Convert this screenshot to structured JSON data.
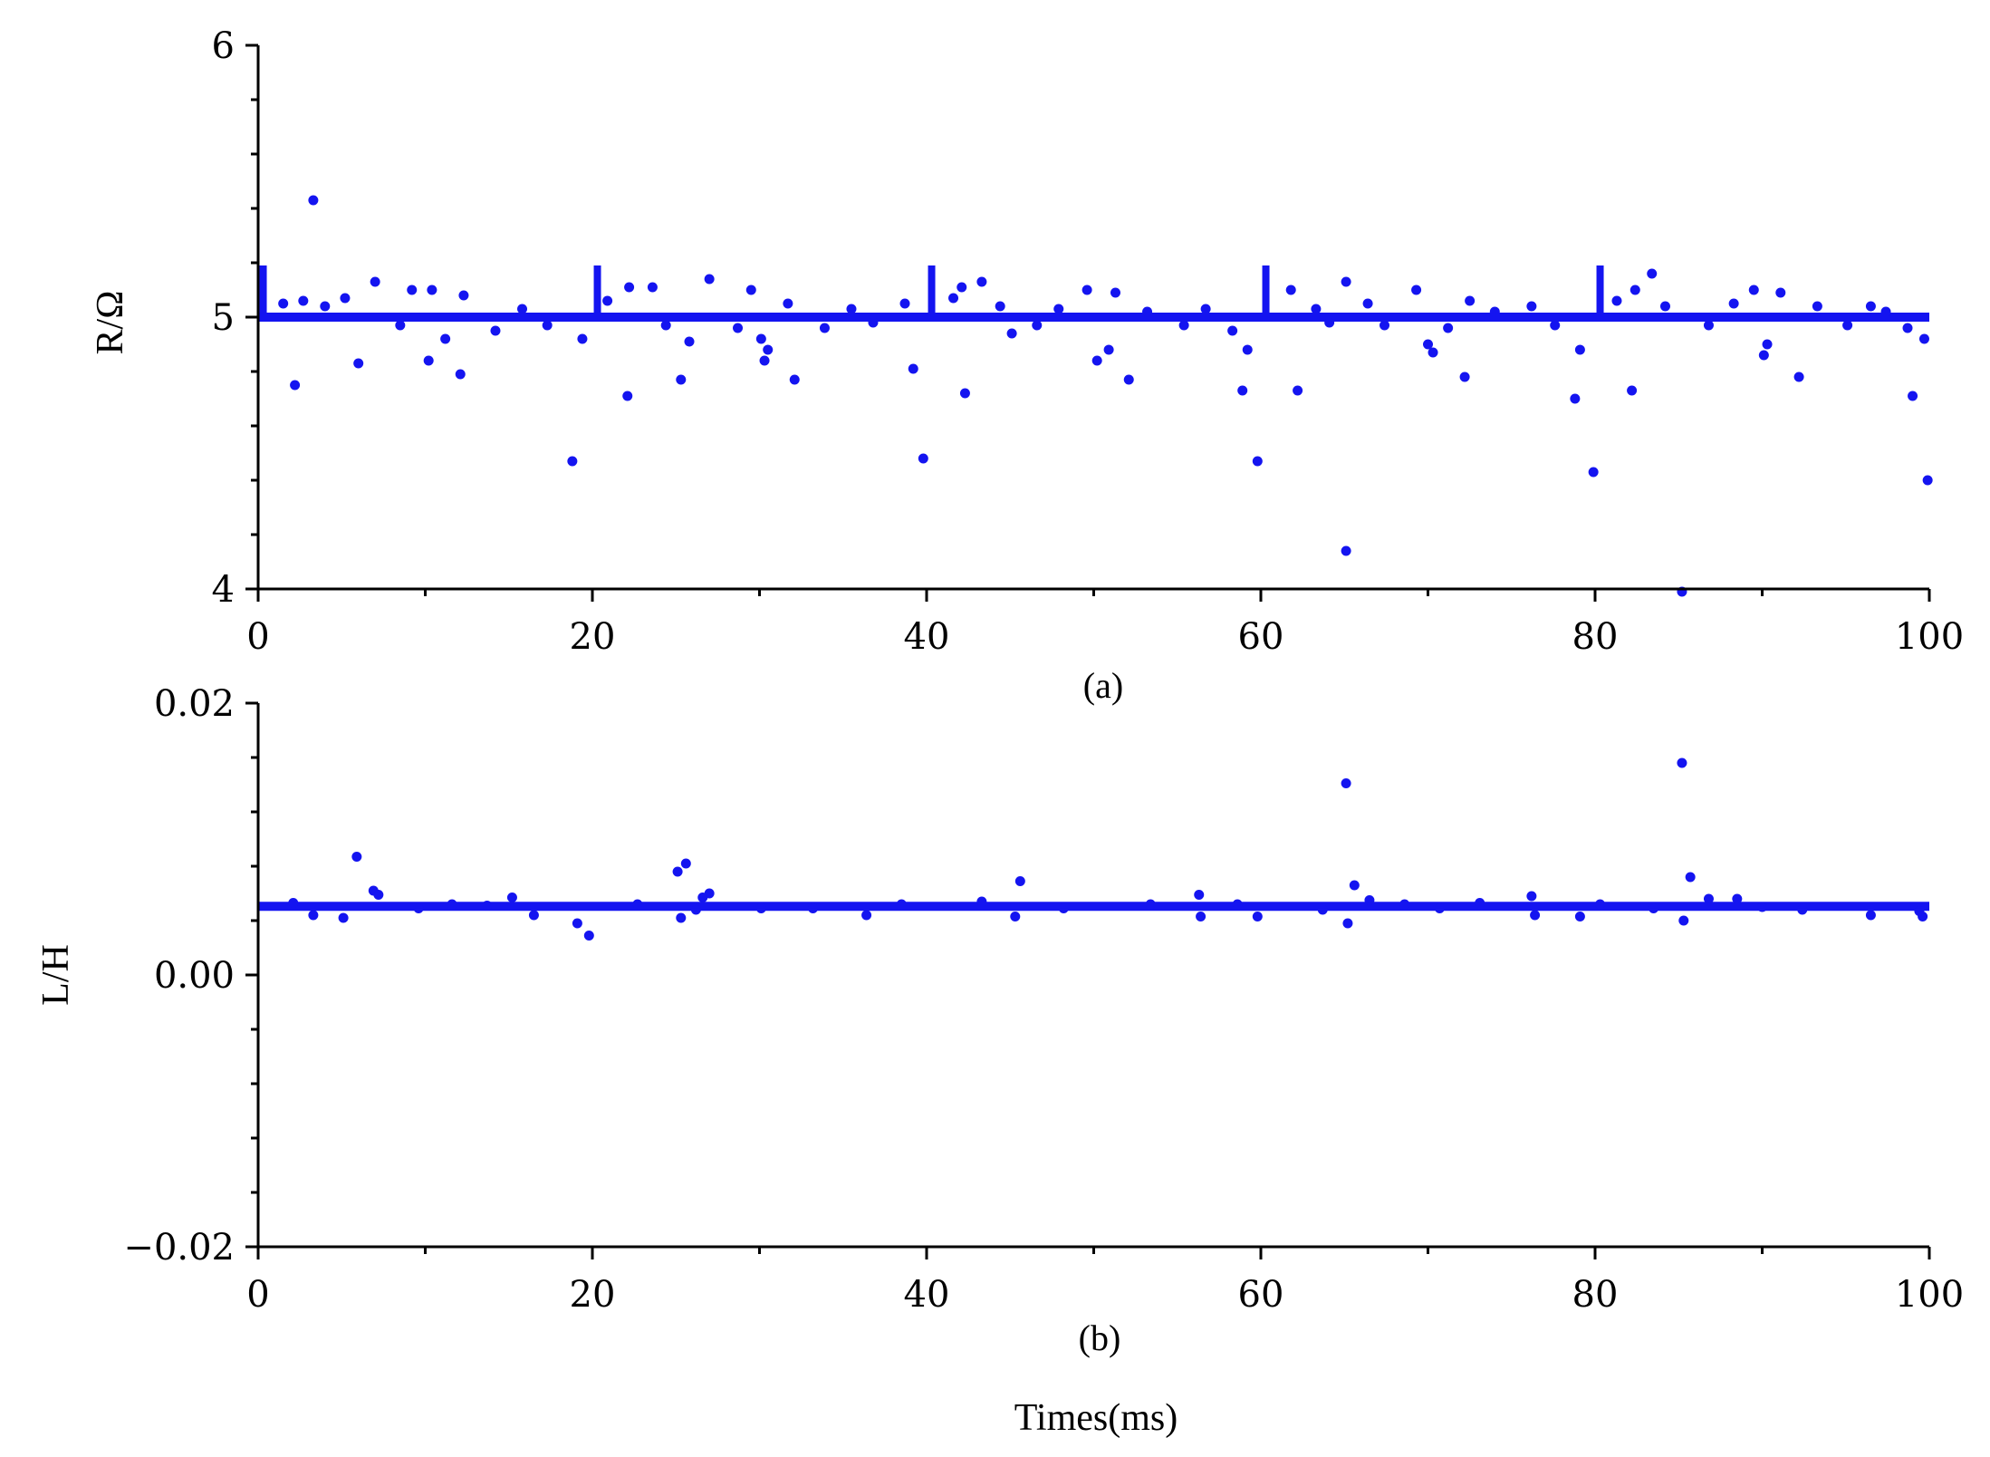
{
  "colors": {
    "points": "#1414f0",
    "axes": "#000000"
  },
  "xlabel": "Times(ms)",
  "chart_data": [
    {
      "type": "scatter",
      "panel_label": "(a)",
      "ylabel": "R/Ω",
      "xlim": [
        0,
        100
      ],
      "ylim": [
        4,
        6
      ],
      "x_ticks": [
        "0",
        "20",
        "40",
        "60",
        "80",
        "100"
      ],
      "y_ticks": [
        "4",
        "5",
        "6"
      ],
      "baseline": 5.0,
      "series": [
        {
          "points": [
            [
              3.3,
              5.43
            ],
            [
              2.2,
              4.75
            ],
            [
              6.0,
              4.83
            ],
            [
              10.2,
              4.84
            ],
            [
              12.1,
              4.79
            ],
            [
              7.0,
              5.13
            ],
            [
              18.8,
              4.47
            ],
            [
              22.1,
              4.71
            ],
            [
              25.3,
              4.77
            ],
            [
              27.0,
              5.14
            ],
            [
              30.3,
              4.84
            ],
            [
              32.1,
              4.77
            ],
            [
              39.8,
              4.48
            ],
            [
              39.2,
              4.81
            ],
            [
              42.3,
              4.72
            ],
            [
              43.3,
              5.13
            ],
            [
              45.1,
              4.94
            ],
            [
              50.2,
              4.84
            ],
            [
              52.1,
              4.77
            ],
            [
              59.8,
              4.47
            ],
            [
              58.9,
              4.73
            ],
            [
              62.2,
              4.73
            ],
            [
              65.1,
              4.14
            ],
            [
              65.1,
              5.13
            ],
            [
              70.3,
              4.87
            ],
            [
              72.2,
              4.78
            ],
            [
              79.9,
              4.43
            ],
            [
              78.8,
              4.7
            ],
            [
              82.2,
              4.73
            ],
            [
              83.4,
              5.16
            ],
            [
              85.2,
              3.99
            ],
            [
              90.1,
              4.86
            ],
            [
              92.2,
              4.78
            ],
            [
              99.0,
              4.71
            ],
            [
              99.9,
              4.4
            ],
            [
              99.7,
              4.92
            ],
            [
              1.5,
              5.05
            ],
            [
              2.7,
              5.06
            ],
            [
              4.0,
              5.04
            ],
            [
              5.2,
              5.07
            ],
            [
              8.5,
              4.97
            ],
            [
              9.2,
              5.1
            ],
            [
              10.4,
              5.1
            ],
            [
              11.2,
              4.92
            ],
            [
              12.3,
              5.08
            ],
            [
              14.2,
              4.95
            ],
            [
              15.8,
              5.03
            ],
            [
              17.3,
              4.97
            ],
            [
              19.4,
              4.92
            ],
            [
              20.9,
              5.06
            ],
            [
              22.2,
              5.11
            ],
            [
              23.6,
              5.11
            ],
            [
              24.4,
              4.97
            ],
            [
              25.8,
              4.91
            ],
            [
              28.7,
              4.96
            ],
            [
              29.5,
              5.1
            ],
            [
              30.1,
              4.92
            ],
            [
              30.5,
              4.88
            ],
            [
              31.7,
              5.05
            ],
            [
              33.9,
              4.96
            ],
            [
              35.5,
              5.03
            ],
            [
              36.8,
              4.98
            ],
            [
              38.7,
              5.05
            ],
            [
              41.6,
              5.07
            ],
            [
              42.1,
              5.11
            ],
            [
              44.4,
              5.04
            ],
            [
              46.6,
              4.97
            ],
            [
              47.9,
              5.03
            ],
            [
              49.6,
              5.1
            ],
            [
              50.9,
              4.88
            ],
            [
              51.3,
              5.09
            ],
            [
              53.2,
              5.02
            ],
            [
              55.4,
              4.97
            ],
            [
              56.7,
              5.03
            ],
            [
              58.3,
              4.95
            ],
            [
              59.2,
              4.88
            ],
            [
              61.8,
              5.1
            ],
            [
              63.3,
              5.03
            ],
            [
              64.1,
              4.98
            ],
            [
              66.4,
              5.05
            ],
            [
              67.4,
              4.97
            ],
            [
              69.3,
              5.1
            ],
            [
              70.0,
              4.9
            ],
            [
              71.2,
              4.96
            ],
            [
              72.5,
              5.06
            ],
            [
              74.0,
              5.02
            ],
            [
              76.2,
              5.04
            ],
            [
              77.6,
              4.97
            ],
            [
              79.1,
              4.88
            ],
            [
              81.3,
              5.06
            ],
            [
              82.4,
              5.1
            ],
            [
              84.2,
              5.04
            ],
            [
              86.8,
              4.97
            ],
            [
              88.3,
              5.05
            ],
            [
              89.5,
              5.1
            ],
            [
              90.3,
              4.9
            ],
            [
              91.1,
              5.09
            ],
            [
              93.3,
              5.04
            ],
            [
              95.1,
              4.97
            ],
            [
              96.5,
              5.04
            ],
            [
              97.4,
              5.02
            ],
            [
              98.7,
              4.96
            ]
          ]
        }
      ]
    },
    {
      "type": "scatter",
      "panel_label": "(b)",
      "ylabel": "L/H",
      "xlim": [
        0,
        100
      ],
      "ylim": [
        -0.02,
        0.02
      ],
      "x_ticks": [
        "0",
        "20",
        "40",
        "60",
        "80",
        "100"
      ],
      "y_ticks": [
        "−0.02",
        "0.00",
        "0.02"
      ],
      "baseline": 0.00505,
      "series": [
        {
          "points": [
            [
              5.9,
              0.0087
            ],
            [
              6.9,
              0.0062
            ],
            [
              7.2,
              0.0059
            ],
            [
              3.3,
              0.0044
            ],
            [
              5.1,
              0.0042
            ],
            [
              16.5,
              0.0044
            ],
            [
              19.1,
              0.0038
            ],
            [
              19.8,
              0.0029
            ],
            [
              25.1,
              0.0076
            ],
            [
              25.6,
              0.0082
            ],
            [
              27.0,
              0.006
            ],
            [
              26.6,
              0.0057
            ],
            [
              25.3,
              0.0042
            ],
            [
              36.4,
              0.0044
            ],
            [
              45.6,
              0.0069
            ],
            [
              45.3,
              0.0043
            ],
            [
              56.4,
              0.0043
            ],
            [
              59.8,
              0.0043
            ],
            [
              65.1,
              0.0141
            ],
            [
              65.6,
              0.0066
            ],
            [
              65.2,
              0.0038
            ],
            [
              66.5,
              0.0055
            ],
            [
              76.4,
              0.0044
            ],
            [
              79.1,
              0.0043
            ],
            [
              85.2,
              0.0156
            ],
            [
              85.7,
              0.0072
            ],
            [
              85.3,
              0.004
            ],
            [
              86.8,
              0.0056
            ],
            [
              96.5,
              0.0044
            ],
            [
              99.6,
              0.0043
            ],
            [
              99.4,
              0.0047
            ],
            [
              11.6,
              0.0052
            ],
            [
              15.2,
              0.0057
            ],
            [
              26.2,
              0.0048
            ],
            [
              33.2,
              0.0049
            ],
            [
              43.3,
              0.0054
            ],
            [
              53.4,
              0.0052
            ],
            [
              56.3,
              0.0059
            ],
            [
              63.7,
              0.0048
            ],
            [
              68.6,
              0.0052
            ],
            [
              73.1,
              0.0053
            ],
            [
              76.2,
              0.0058
            ],
            [
              83.5,
              0.0049
            ],
            [
              88.5,
              0.0056
            ],
            [
              92.4,
              0.0048
            ],
            [
              2.1,
              0.0053
            ],
            [
              9.6,
              0.0049
            ],
            [
              13.7,
              0.0051
            ],
            [
              22.7,
              0.0052
            ],
            [
              30.1,
              0.0049
            ],
            [
              38.5,
              0.0052
            ],
            [
              48.2,
              0.0049
            ],
            [
              58.6,
              0.0052
            ],
            [
              70.7,
              0.0049
            ],
            [
              80.3,
              0.0052
            ],
            [
              90.0,
              0.005
            ]
          ]
        }
      ]
    }
  ]
}
